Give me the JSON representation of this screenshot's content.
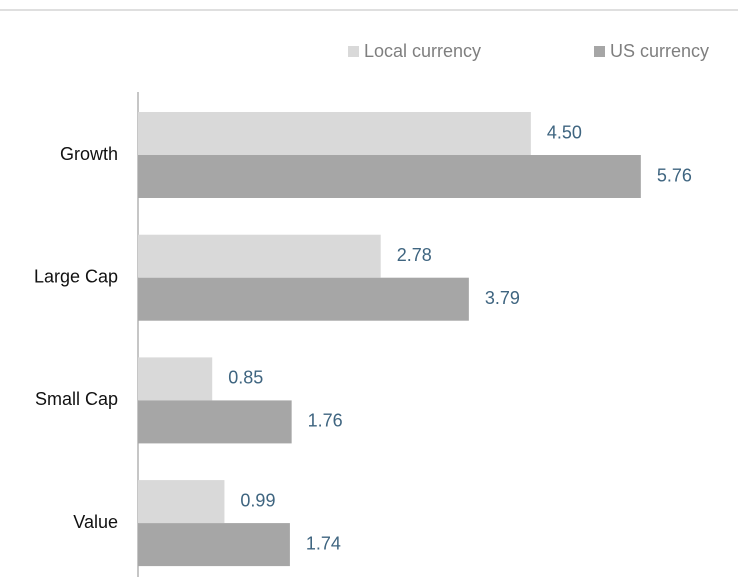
{
  "chart_data": {
    "type": "bar",
    "orientation": "horizontal",
    "categories": [
      "Growth",
      "Large Cap",
      "Small Cap",
      "Value"
    ],
    "series": [
      {
        "name": "Local currency",
        "color": "#d9d9d9",
        "values": [
          4.5,
          2.78,
          0.85,
          0.99
        ],
        "value_labels": [
          "4.50",
          "2.78",
          "0.85",
          "0.99"
        ]
      },
      {
        "name": "US currency",
        "color": "#a6a6a6",
        "values": [
          5.76,
          3.79,
          1.76,
          1.74
        ],
        "value_labels": [
          "5.76",
          "3.79",
          "1.76",
          "1.74"
        ]
      }
    ],
    "legend": "top-right"
  }
}
